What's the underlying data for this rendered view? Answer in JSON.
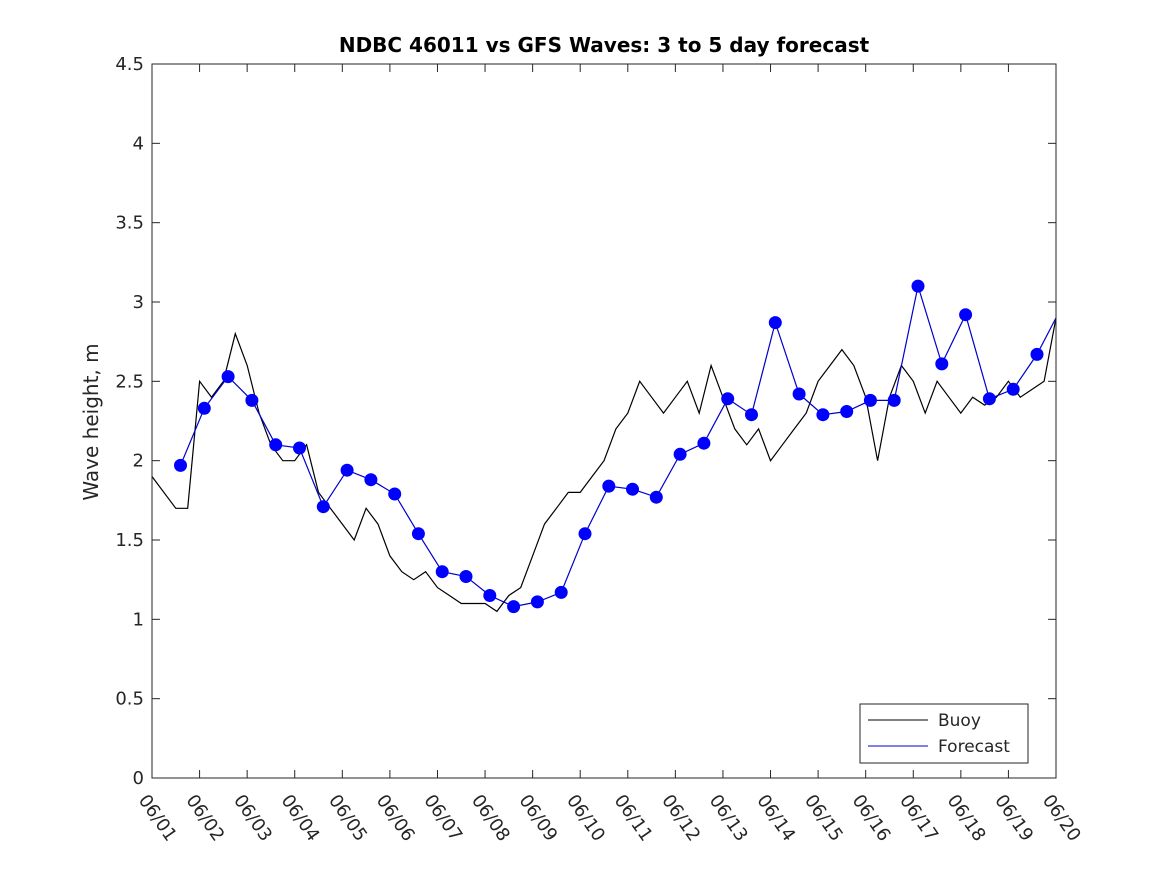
{
  "chart_data": {
    "type": "line",
    "title": "NDBC 46011 vs GFS Waves: 3 to 5 day forecast",
    "xlabel": "",
    "ylabel": "Wave height, m",
    "xlim": [
      0,
      19
    ],
    "ylim": [
      0,
      4.5
    ],
    "x_ticks": [
      0,
      1,
      2,
      3,
      4,
      5,
      6,
      7,
      8,
      9,
      10,
      11,
      12,
      13,
      14,
      15,
      16,
      17,
      18,
      19
    ],
    "x_tick_labels": [
      "06/01",
      "06/02",
      "06/03",
      "06/04",
      "06/05",
      "06/06",
      "06/07",
      "06/08",
      "06/09",
      "06/10",
      "06/11",
      "06/12",
      "06/13",
      "06/14",
      "06/15",
      "06/16",
      "06/17",
      "06/18",
      "06/19",
      "06/20"
    ],
    "y_ticks": [
      0,
      0.5,
      1,
      1.5,
      2,
      2.5,
      3,
      3.5,
      4,
      4.5
    ],
    "y_tick_labels": [
      "0",
      "0.5",
      "1",
      "1.5",
      "2",
      "2.5",
      "3",
      "3.5",
      "4",
      "4.5"
    ],
    "grid": false,
    "legend": {
      "position": "bottom-right",
      "entries": [
        {
          "label": "Buoy",
          "color": "#000000"
        },
        {
          "label": "Forecast",
          "color": "#0000cc"
        }
      ]
    },
    "series": [
      {
        "name": "Buoy",
        "color": "#000000",
        "x": [
          0.0,
          0.5,
          0.75,
          1.0,
          1.25,
          1.5,
          1.75,
          2.0,
          2.25,
          2.5,
          2.75,
          3.0,
          3.25,
          3.5,
          3.75,
          4.0,
          4.25,
          4.5,
          4.75,
          5.0,
          5.25,
          5.5,
          5.75,
          6.0,
          6.25,
          6.5,
          6.75,
          7.0,
          7.25,
          7.5,
          7.75,
          8.0,
          8.25,
          8.5,
          8.75,
          9.0,
          9.25,
          9.5,
          9.75,
          10.0,
          10.25,
          10.5,
          10.75,
          11.0,
          11.25,
          11.5,
          11.75,
          12.0,
          12.25,
          12.5,
          12.75,
          13.0,
          13.25,
          13.5,
          13.75,
          14.0,
          14.25,
          14.5,
          14.75,
          15.0,
          15.25,
          15.5,
          15.75,
          16.0,
          16.25,
          16.5,
          16.75,
          17.0,
          17.25,
          17.5,
          17.75,
          18.0,
          18.25,
          18.5,
          18.75,
          19.0
        ],
        "y": [
          1.9,
          1.7,
          1.7,
          2.5,
          2.4,
          2.5,
          2.8,
          2.6,
          2.3,
          2.1,
          2.0,
          2.0,
          2.1,
          1.8,
          1.7,
          1.6,
          1.5,
          1.7,
          1.6,
          1.4,
          1.3,
          1.25,
          1.3,
          1.2,
          1.15,
          1.1,
          1.1,
          1.1,
          1.05,
          1.15,
          1.2,
          1.4,
          1.6,
          1.7,
          1.8,
          1.8,
          1.9,
          2.0,
          2.2,
          2.3,
          2.5,
          2.4,
          2.3,
          2.4,
          2.5,
          2.3,
          2.6,
          2.4,
          2.2,
          2.1,
          2.2,
          2.0,
          2.1,
          2.2,
          2.3,
          2.5,
          2.6,
          2.7,
          2.6,
          2.4,
          2.0,
          2.4,
          2.6,
          2.5,
          2.3,
          2.5,
          2.4,
          2.3,
          2.4,
          2.35,
          2.4,
          2.5,
          2.4,
          2.45,
          2.5,
          2.9
        ]
      },
      {
        "name": "Forecast",
        "color": "#0000cc",
        "x": [
          0.6,
          1.1,
          1.6,
          2.1,
          2.6,
          3.1,
          3.6,
          4.1,
          4.6,
          5.1,
          5.6,
          6.1,
          6.6,
          7.1,
          7.6,
          8.1,
          8.6,
          9.1,
          9.6,
          10.1,
          10.6,
          11.1,
          11.6,
          12.1,
          12.6,
          13.1,
          13.6,
          14.1,
          14.6,
          15.1,
          15.6,
          16.1,
          16.6,
          17.1,
          17.6,
          18.1,
          18.6,
          19.0
        ],
        "y": [
          1.97,
          2.33,
          2.53,
          2.38,
          2.1,
          2.08,
          1.71,
          1.94,
          1.88,
          1.79,
          1.54,
          1.3,
          1.27,
          1.15,
          1.08,
          1.11,
          1.17,
          1.54,
          1.84,
          1.82,
          1.77,
          2.04,
          2.11,
          2.39,
          2.29,
          2.87,
          2.42,
          2.29,
          2.31,
          2.38,
          2.38,
          3.1,
          2.61,
          2.92,
          2.39,
          2.45,
          2.67,
          2.9
        ]
      }
    ],
    "forecast_markers": {
      "name": "Forecast points",
      "color": "#0000ff",
      "x": [
        0.6,
        1.1,
        1.6,
        2.1,
        2.6,
        3.1,
        3.6,
        4.1,
        4.6,
        5.1,
        5.6,
        6.1,
        6.6,
        7.1,
        7.6,
        8.1,
        8.6,
        9.1,
        9.6,
        10.1,
        10.6,
        11.1,
        11.6,
        12.1,
        12.6,
        13.1,
        13.6,
        14.1,
        14.6,
        15.1,
        15.6,
        16.1,
        16.6,
        17.1,
        17.6,
        18.1,
        18.6
      ],
      "y": [
        1.97,
        2.33,
        2.53,
        2.38,
        2.1,
        2.08,
        1.71,
        1.94,
        1.88,
        1.79,
        1.54,
        1.3,
        1.27,
        1.15,
        1.08,
        1.11,
        1.17,
        1.54,
        1.84,
        1.82,
        1.77,
        2.04,
        2.11,
        2.39,
        2.29,
        2.87,
        2.42,
        2.29,
        2.31,
        2.38,
        2.38,
        3.1,
        2.61,
        2.92,
        2.39,
        2.45,
        2.67
      ]
    }
  }
}
